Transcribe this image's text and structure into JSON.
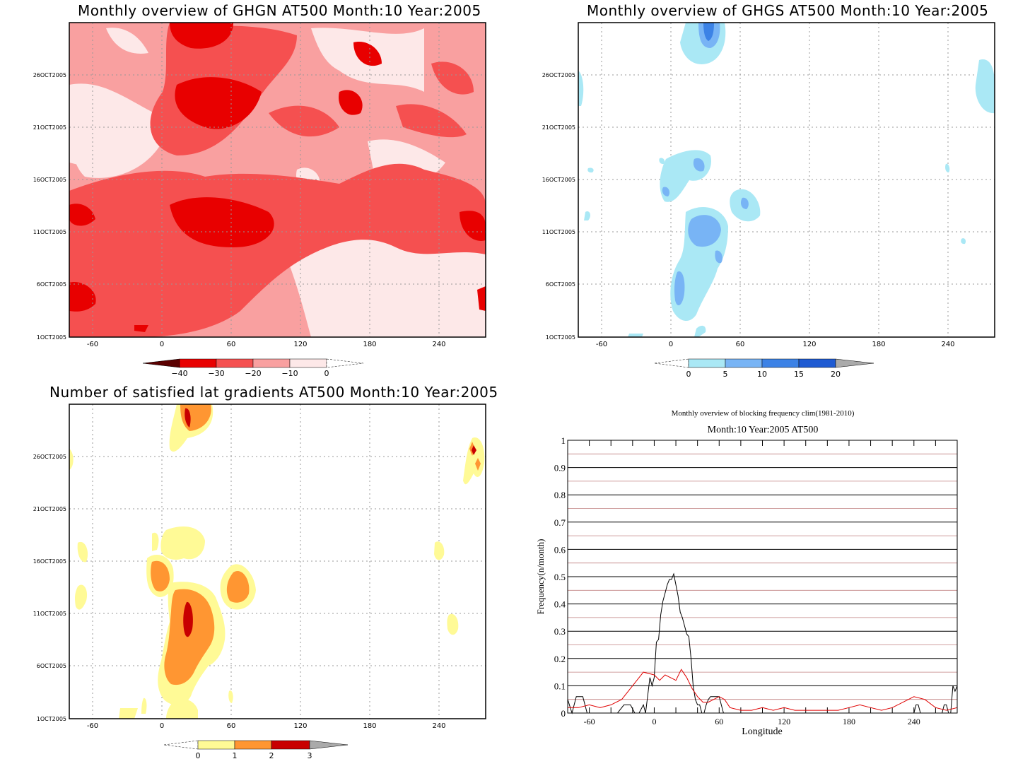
{
  "panels": {
    "ghgn": {
      "title": "Monthly overview of GHGN AT500 Month:10 Year:2005",
      "colorbar": {
        "labels": [
          "−40",
          "−30",
          "−20",
          "−10",
          "0"
        ],
        "colors": [
          "#5a0000",
          "#e80000",
          "#f55050",
          "#f9a0a0",
          "#fde8e8"
        ]
      },
      "xticks": [
        "-60",
        "0",
        "60",
        "120",
        "180",
        "240"
      ],
      "yticks": [
        "26OCT2005",
        "21OCT2005",
        "16OCT2005",
        "11OCT2005",
        "6OCT2005",
        "1OCT2005"
      ]
    },
    "ghgs": {
      "title": "Monthly overview of GHGS AT500 Month:10 Year:2005",
      "colorbar": {
        "labels": [
          "0",
          "5",
          "10",
          "15",
          "20"
        ],
        "colors": [
          "#aae8f5",
          "#78b4f5",
          "#3c82e6",
          "#1e5ad2",
          "#aaaaaa"
        ]
      },
      "xticks": [
        "-60",
        "0",
        "60",
        "120",
        "180",
        "240"
      ],
      "yticks": [
        "26OCT2005",
        "21OCT2005",
        "16OCT2005",
        "11OCT2005",
        "6OCT2005",
        "1OCT2005"
      ]
    },
    "latgrad": {
      "title": "Number of satisfied lat gradients AT500 Month:10 Year:2005",
      "colorbar": {
        "labels": [
          "0",
          "1",
          "2",
          "3"
        ],
        "colors": [
          "#fffa96",
          "#ff9632",
          "#c80000",
          "#aaaaaa"
        ]
      },
      "xticks": [
        "-60",
        "0",
        "60",
        "120",
        "180",
        "240"
      ],
      "yticks": [
        "26OCT2005",
        "21OCT2005",
        "16OCT2005",
        "11OCT2005",
        "6OCT2005",
        "1OCT2005"
      ]
    },
    "freq": {
      "title": "Monthly overview of blocking frequency clim(1981-2010)",
      "subtitle": "Month:10 Year:2005  AT500",
      "xlabel": "Longitude",
      "ylabel": "Frequency(n/month)",
      "xticks": [
        "-60",
        "0",
        "60",
        "120",
        "180",
        "240"
      ],
      "yticks": [
        "0",
        "0.1",
        "0.2",
        "0.3",
        "0.4",
        "0.5",
        "0.6",
        "0.7",
        "0.8",
        "0.9",
        "1"
      ]
    }
  },
  "chart_data": [
    {
      "type": "heatmap",
      "title": "Monthly overview of GHGN AT500 Month:10 Year:2005",
      "x_range": [
        -80,
        280
      ],
      "y_range": [
        "1OCT2005",
        "30OCT2005"
      ],
      "levels": [
        -40,
        -30,
        -20,
        -10,
        0
      ],
      "colors": [
        "#5a0000",
        "#e80000",
        "#f55050",
        "#f9a0a0",
        "#fde8e8"
      ]
    },
    {
      "type": "heatmap",
      "title": "Monthly overview of GHGS AT500 Month:10 Year:2005",
      "x_range": [
        -80,
        280
      ],
      "y_range": [
        "1OCT2005",
        "30OCT2005"
      ],
      "levels": [
        0,
        5,
        10,
        15,
        20
      ],
      "colors": [
        "#aae8f5",
        "#78b4f5",
        "#3c82e6",
        "#1e5ad2"
      ]
    },
    {
      "type": "heatmap",
      "title": "Number of satisfied lat gradients AT500 Month:10 Year:2005",
      "x_range": [
        -80,
        280
      ],
      "y_range": [
        "1OCT2005",
        "30OCT2005"
      ],
      "levels": [
        0,
        1,
        2,
        3
      ],
      "colors": [
        "#fffa96",
        "#ff9632",
        "#c80000"
      ]
    },
    {
      "type": "line",
      "title": "Monthly overview of blocking frequency clim(1981-2010)",
      "subtitle": "Month:10 Year:2005  AT500",
      "xlabel": "Longitude",
      "ylabel": "Frequency(n/month)",
      "xlim": [
        -80,
        280
      ],
      "ylim": [
        0,
        1
      ],
      "series": [
        {
          "color": "#000000",
          "x": [
            -80,
            -76,
            -72,
            -66,
            -62,
            -58,
            -50,
            -40,
            -34,
            -28,
            -22,
            -18,
            -14,
            -10,
            -8,
            -4,
            -2,
            0,
            2,
            4,
            6,
            8,
            10,
            12,
            14,
            16,
            18,
            20,
            22,
            24,
            26,
            28,
            30,
            32,
            34,
            36,
            38,
            40,
            42,
            44,
            46,
            48,
            50,
            52,
            54,
            56,
            58,
            60,
            62,
            64,
            66,
            68,
            70,
            72,
            74,
            76,
            78,
            80,
            240,
            242,
            244,
            246,
            248,
            250,
            252,
            254,
            256,
            258,
            260,
            262,
            264,
            266,
            268,
            270,
            272,
            274,
            276,
            278,
            280
          ],
          "y": [
            0.05,
            0,
            0.06,
            0.06,
            0,
            0,
            0,
            0,
            0,
            0.03,
            0.03,
            0,
            0,
            0.03,
            0,
            0.13,
            0.1,
            0.13,
            0.26,
            0.27,
            0.36,
            0.41,
            0.44,
            0.47,
            0.49,
            0.49,
            0.51,
            0.47,
            0.43,
            0.37,
            0.35,
            0.32,
            0.29,
            0.28,
            0.2,
            0.1,
            0.05,
            0.03,
            0.03,
            0,
            0,
            0.03,
            0.05,
            0.06,
            0.06,
            0.06,
            0.06,
            0.06,
            0.03,
            0,
            0,
            0,
            0,
            0,
            0,
            0,
            0,
            0,
            0,
            0.03,
            0.03,
            0,
            0,
            0,
            0,
            0,
            0,
            0,
            0,
            0,
            0,
            0,
            0.03,
            0.03,
            0,
            0,
            0.1,
            0.08,
            0.1
          ]
        },
        {
          "color": "#e00000",
          "x": [
            -80,
            -70,
            -60,
            -50,
            -40,
            -30,
            -20,
            -10,
            0,
            5,
            10,
            15,
            20,
            25,
            30,
            35,
            40,
            45,
            50,
            55,
            60,
            65,
            70,
            80,
            90,
            100,
            110,
            120,
            130,
            140,
            150,
            160,
            170,
            180,
            190,
            200,
            210,
            220,
            230,
            240,
            250,
            260,
            270,
            280
          ],
          "y": [
            0.02,
            0.02,
            0.03,
            0.02,
            0.03,
            0.05,
            0.1,
            0.15,
            0.14,
            0.12,
            0.14,
            0.13,
            0.12,
            0.16,
            0.13,
            0.09,
            0.06,
            0.04,
            0.04,
            0.05,
            0.06,
            0.05,
            0.02,
            0.01,
            0.01,
            0.02,
            0.01,
            0.02,
            0.01,
            0.01,
            0.01,
            0.01,
            0.01,
            0.02,
            0.03,
            0.02,
            0.01,
            0.02,
            0.04,
            0.06,
            0.05,
            0.02,
            0.01,
            0.02
          ]
        }
      ]
    }
  ]
}
